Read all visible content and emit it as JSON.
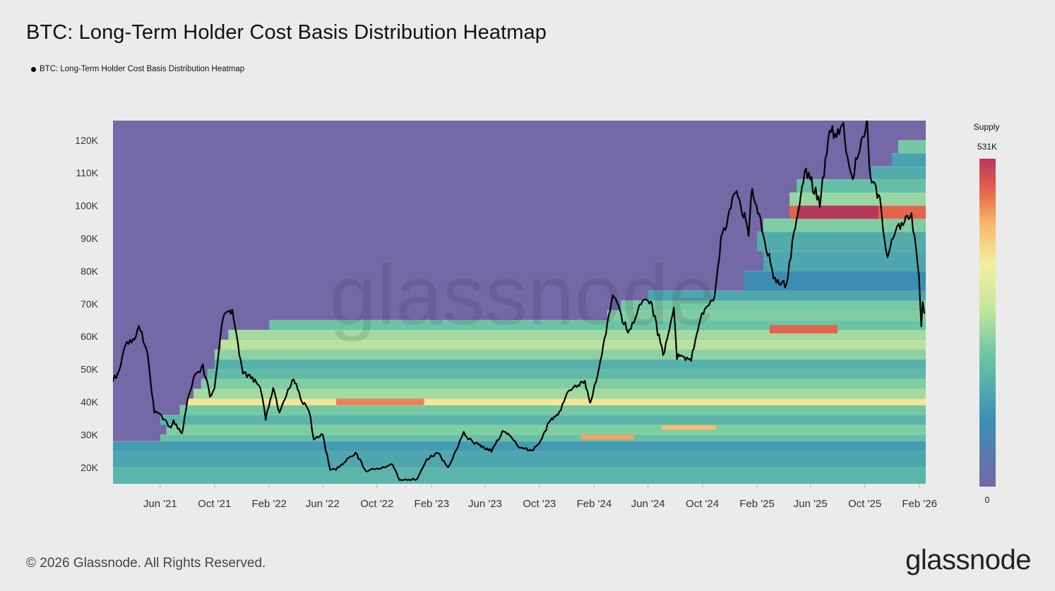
{
  "title": "BTC: Long-Term Holder Cost Basis Distribution Heatmap",
  "legend": {
    "label": "BTC: Long-Term Holder Cost Basis Distribution Heatmap",
    "color": "#000000"
  },
  "footer": {
    "copyright": "© 2026 Glassnode. All Rights Reserved.",
    "brand": "glassnode"
  },
  "chart_data": {
    "type": "heatmap",
    "title": "BTC: Long-Term Holder Cost Basis Distribution Heatmap",
    "x_tick_labels": [
      "Jun '21",
      "Oct '21",
      "Feb '22",
      "Jun '22",
      "Oct '22",
      "Feb '23",
      "Jun '23",
      "Oct '23",
      "Feb '24",
      "Jun '24",
      "Oct '24",
      "Feb '25",
      "Jun '25",
      "Oct '25",
      "Feb '26"
    ],
    "y_tick_labels": [
      "20K",
      "30K",
      "40K",
      "50K",
      "60K",
      "70K",
      "80K",
      "90K",
      "100K",
      "110K",
      "120K"
    ],
    "ylim": [
      15000,
      126000
    ],
    "xlim": [
      "2021-02-15",
      "2026-02-15"
    ],
    "colorbar": {
      "title": "Supply",
      "max_label": "531K",
      "min_label": "0",
      "max": 531000,
      "min": 0
    },
    "colors": {
      "background_cell": "#7468a6",
      "price_line": "#000000"
    },
    "price_series": {
      "name": "BTC price",
      "points": [
        [
          "2021-02-15",
          47000
        ],
        [
          "2021-03-01",
          49000
        ],
        [
          "2021-03-15",
          58000
        ],
        [
          "2021-04-01",
          59000
        ],
        [
          "2021-04-14",
          63000
        ],
        [
          "2021-05-01",
          57000
        ],
        [
          "2021-05-19",
          37000
        ],
        [
          "2021-06-01",
          36500
        ],
        [
          "2021-06-22",
          32000
        ],
        [
          "2021-07-01",
          34000
        ],
        [
          "2021-07-20",
          30000
        ],
        [
          "2021-08-01",
          40000
        ],
        [
          "2021-08-15",
          47000
        ],
        [
          "2021-09-05",
          51000
        ],
        [
          "2021-09-21",
          42000
        ],
        [
          "2021-10-01",
          44000
        ],
        [
          "2021-10-20",
          66000
        ],
        [
          "2021-11-10",
          67500
        ],
        [
          "2021-11-26",
          54000
        ],
        [
          "2021-12-04",
          49000
        ],
        [
          "2021-12-31",
          46500
        ],
        [
          "2022-01-15",
          43000
        ],
        [
          "2022-01-24",
          35000
        ],
        [
          "2022-02-10",
          44000
        ],
        [
          "2022-02-24",
          37000
        ],
        [
          "2022-03-28",
          47500
        ],
        [
          "2022-04-15",
          40000
        ],
        [
          "2022-05-01",
          38000
        ],
        [
          "2022-05-12",
          28500
        ],
        [
          "2022-06-01",
          30000
        ],
        [
          "2022-06-18",
          19000
        ],
        [
          "2022-07-01",
          19500
        ],
        [
          "2022-08-14",
          24500
        ],
        [
          "2022-09-06",
          19000
        ],
        [
          "2022-10-01",
          19500
        ],
        [
          "2022-11-05",
          21000
        ],
        [
          "2022-11-21",
          16000
        ],
        [
          "2022-12-31",
          16500
        ],
        [
          "2023-01-21",
          22500
        ],
        [
          "2023-02-15",
          24500
        ],
        [
          "2023-03-10",
          20000
        ],
        [
          "2023-04-14",
          30500
        ],
        [
          "2023-05-01",
          28000
        ],
        [
          "2023-06-15",
          25000
        ],
        [
          "2023-07-13",
          31500
        ],
        [
          "2023-08-17",
          26500
        ],
        [
          "2023-09-11",
          25000
        ],
        [
          "2023-10-01",
          27000
        ],
        [
          "2023-10-25",
          34500
        ],
        [
          "2023-11-15",
          37000
        ],
        [
          "2023-12-08",
          44000
        ],
        [
          "2024-01-11",
          46500
        ],
        [
          "2024-01-23",
          39500
        ],
        [
          "2024-02-15",
          52000
        ],
        [
          "2024-03-14",
          73000
        ],
        [
          "2024-04-17",
          61000
        ],
        [
          "2024-05-20",
          71000
        ],
        [
          "2024-06-07",
          71000
        ],
        [
          "2024-07-05",
          54000
        ],
        [
          "2024-07-29",
          69000
        ],
        [
          "2024-08-05",
          54000
        ],
        [
          "2024-09-06",
          53000
        ],
        [
          "2024-09-27",
          66000
        ],
        [
          "2024-10-29",
          72000
        ],
        [
          "2024-11-12",
          89000
        ],
        [
          "2024-12-17",
          106000
        ],
        [
          "2025-01-13",
          91000
        ],
        [
          "2025-01-21",
          106000
        ],
        [
          "2025-02-25",
          86000
        ],
        [
          "2025-03-10",
          78000
        ],
        [
          "2025-04-08",
          76000
        ],
        [
          "2025-05-01",
          97000
        ],
        [
          "2025-05-22",
          111000
        ],
        [
          "2025-06-22",
          101000
        ],
        [
          "2025-07-14",
          122000
        ],
        [
          "2025-08-14",
          123500
        ],
        [
          "2025-09-01",
          108000
        ],
        [
          "2025-10-06",
          125500
        ],
        [
          "2025-10-11",
          111000
        ],
        [
          "2025-11-04",
          101000
        ],
        [
          "2025-11-21",
          84000
        ],
        [
          "2025-12-10",
          92500
        ],
        [
          "2026-01-14",
          97000
        ],
        [
          "2026-01-31",
          78000
        ],
        [
          "2026-02-05",
          63000
        ],
        [
          "2026-02-08",
          70000
        ],
        [
          "2026-02-12",
          67000
        ]
      ]
    },
    "bands": [
      {
        "price_low": 15000,
        "price_high": 20000,
        "start": "2021-02-15",
        "supply": 180000
      },
      {
        "price_low": 20000,
        "price_high": 25000,
        "start": "2021-02-15",
        "supply": 150000
      },
      {
        "price_low": 25000,
        "price_high": 28000,
        "start": "2021-02-15",
        "supply": 130000
      },
      {
        "price_low": 28000,
        "price_high": 30000,
        "start": "2021-06-01",
        "supply": 200000
      },
      {
        "price_low": 30000,
        "price_high": 33000,
        "start": "2021-06-15",
        "supply": 230000
      },
      {
        "price_low": 33000,
        "price_high": 36000,
        "start": "2021-06-01",
        "supply": 180000
      },
      {
        "price_low": 36000,
        "price_high": 39000,
        "start": "2021-07-15",
        "supply": 220000
      },
      {
        "price_low": 39000,
        "price_high": 41000,
        "start": "2021-08-01",
        "supply": 370000
      },
      {
        "price_low": 41000,
        "price_high": 44000,
        "start": "2021-08-15",
        "supply": 260000
      },
      {
        "price_low": 44000,
        "price_high": 47000,
        "start": "2021-09-01",
        "supply": 230000
      },
      {
        "price_low": 47000,
        "price_high": 50000,
        "start": "2021-09-15",
        "supply": 190000
      },
      {
        "price_low": 50000,
        "price_high": 53000,
        "start": "2021-10-01",
        "supply": 170000
      },
      {
        "price_low": 53000,
        "price_high": 56000,
        "start": "2021-10-01",
        "supply": 240000
      },
      {
        "price_low": 56000,
        "price_high": 59000,
        "start": "2021-10-15",
        "supply": 280000
      },
      {
        "price_low": 59000,
        "price_high": 62000,
        "start": "2021-11-01",
        "supply": 260000
      },
      {
        "price_low": 62000,
        "price_high": 65000,
        "start": "2022-02-01",
        "supply": 210000
      },
      {
        "price_low": 65000,
        "price_high": 68000,
        "start": "2024-03-01",
        "supply": 230000
      },
      {
        "price_low": 68000,
        "price_high": 71000,
        "start": "2024-04-01",
        "supply": 220000
      },
      {
        "price_low": 71000,
        "price_high": 74000,
        "start": "2024-06-01",
        "supply": 150000
      },
      {
        "price_low": 74000,
        "price_high": 80000,
        "start": "2025-01-01",
        "supply": 100000
      },
      {
        "price_low": 80000,
        "price_high": 86000,
        "start": "2025-02-15",
        "supply": 150000
      },
      {
        "price_low": 86000,
        "price_high": 92000,
        "start": "2025-02-01",
        "supply": 160000
      },
      {
        "price_low": 92000,
        "price_high": 96000,
        "start": "2025-02-15",
        "supply": 230000
      },
      {
        "price_low": 96000,
        "price_high": 100000,
        "start": "2025-04-15",
        "supply": 480000
      },
      {
        "price_low": 100000,
        "price_high": 104000,
        "start": "2025-04-15",
        "supply": 250000
      },
      {
        "price_low": 104000,
        "price_high": 108000,
        "start": "2025-05-01",
        "supply": 200000
      },
      {
        "price_low": 108000,
        "price_high": 112000,
        "start": "2025-10-15",
        "supply": 160000
      },
      {
        "price_low": 112000,
        "price_high": 116000,
        "start": "2025-12-01",
        "supply": 140000
      },
      {
        "price_low": 116000,
        "price_high": 120000,
        "start": "2025-12-15",
        "supply": 220000
      }
    ],
    "hotspots": [
      {
        "price_low": 96000,
        "price_high": 100000,
        "start": "2025-05-01",
        "end": "2025-11-01",
        "supply": 531000
      },
      {
        "price_low": 61000,
        "price_high": 63500,
        "start": "2025-03-01",
        "end": "2025-08-01",
        "supply": 480000
      },
      {
        "price_low": 39000,
        "price_high": 41000,
        "start": "2022-07-01",
        "end": "2023-01-15",
        "supply": 460000
      },
      {
        "price_low": 28500,
        "price_high": 30000,
        "start": "2024-01-01",
        "end": "2024-05-01",
        "supply": 440000
      },
      {
        "price_low": 31500,
        "price_high": 33000,
        "start": "2024-07-01",
        "end": "2024-11-01",
        "supply": 420000
      }
    ]
  }
}
